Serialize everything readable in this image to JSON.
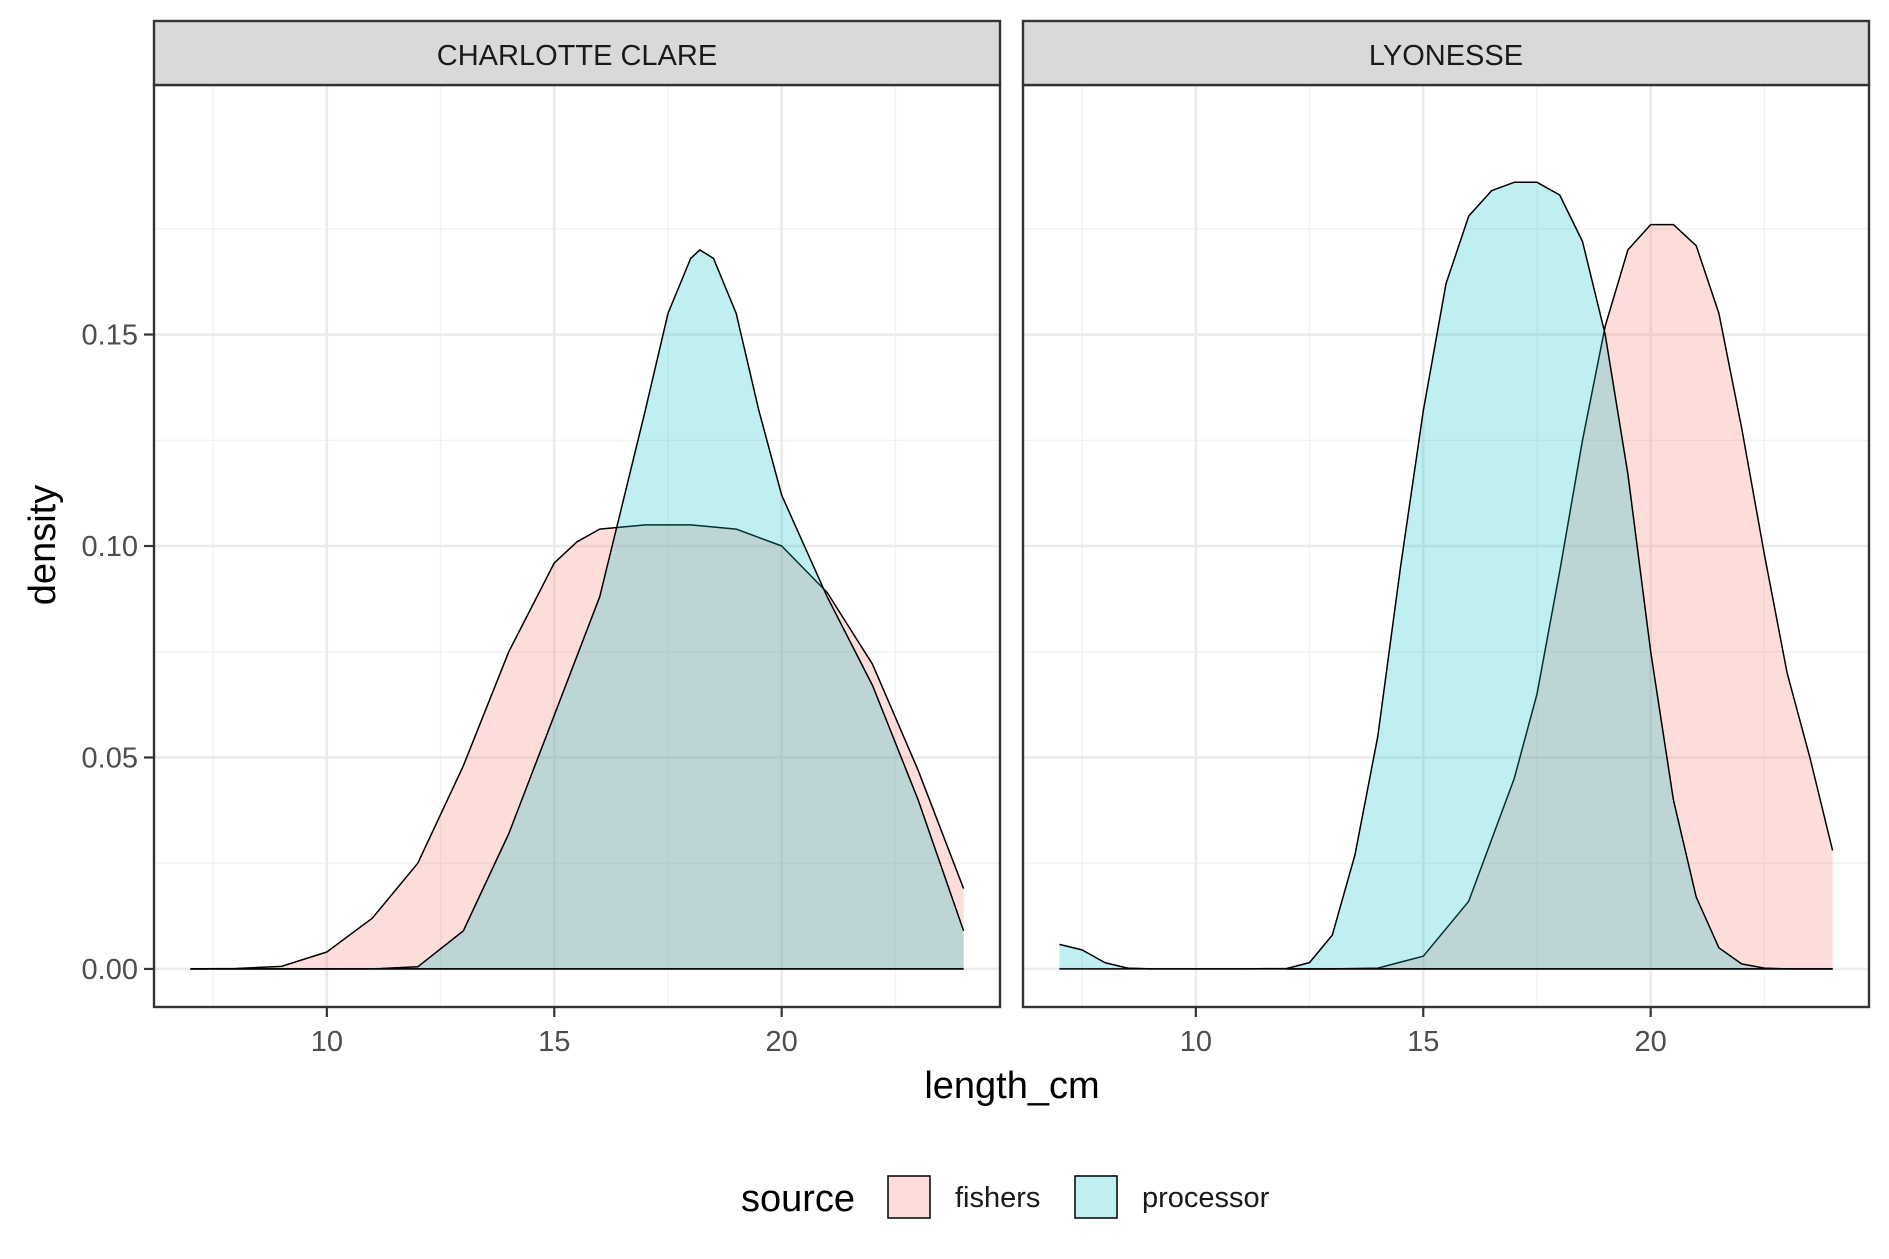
{
  "chart_data": {
    "type": "area",
    "chart_kind": "faceted density plot",
    "xlabel": "length_cm",
    "ylabel": "density",
    "xlim": [
      6.2,
      24.8
    ],
    "ylim": [
      -0.009,
      0.209
    ],
    "x_ticks": [
      10,
      15,
      20
    ],
    "x_tick_labels": [
      "10",
      "15",
      "20"
    ],
    "y_ticks": [
      0.0,
      0.05,
      0.1,
      0.15
    ],
    "y_tick_labels": [
      "0.00",
      "0.05",
      "0.10",
      "0.15"
    ],
    "grid": true,
    "legend": {
      "title": "source",
      "position": "bottom",
      "entries": [
        {
          "name": "fishers",
          "color": "#F8766D"
        },
        {
          "name": "processor",
          "color": "#00BFC4"
        }
      ]
    },
    "fill_alpha": 0.25,
    "panels": [
      {
        "title": "CHARLOTTE CLARE",
        "series": [
          {
            "name": "fishers",
            "x": [
              7.0,
              8.0,
              9.0,
              10.0,
              11.0,
              12.0,
              13.0,
              14.0,
              15.0,
              15.5,
              16.0,
              17.0,
              18.0,
              19.0,
              20.0,
              21.0,
              22.0,
              23.0,
              24.0
            ],
            "y": [
              0.0,
              0.0001,
              0.0006,
              0.004,
              0.012,
              0.025,
              0.048,
              0.075,
              0.096,
              0.101,
              0.104,
              0.105,
              0.105,
              0.104,
              0.1,
              0.089,
              0.072,
              0.047,
              0.019
            ]
          },
          {
            "name": "processor",
            "x": [
              7.0,
              9.0,
              11.0,
              12.0,
              13.0,
              14.0,
              15.0,
              16.0,
              16.5,
              17.0,
              17.5,
              18.0,
              18.2,
              18.5,
              19.0,
              19.5,
              20.0,
              20.5,
              21.0,
              22.0,
              23.0,
              24.0
            ],
            "y": [
              0.0,
              0.0,
              0.0,
              0.0005,
              0.009,
              0.032,
              0.06,
              0.088,
              0.11,
              0.132,
              0.155,
              0.168,
              0.17,
              0.168,
              0.155,
              0.132,
              0.112,
              0.1,
              0.088,
              0.067,
              0.04,
              0.009
            ]
          }
        ]
      },
      {
        "title": "LYONESSE",
        "series": [
          {
            "name": "fishers",
            "x": [
              12.0,
              13.0,
              14.0,
              15.0,
              16.0,
              17.0,
              17.5,
              18.0,
              18.5,
              19.0,
              19.5,
              20.0,
              20.5,
              21.0,
              21.5,
              22.0,
              22.5,
              23.0,
              23.5,
              24.0
            ],
            "y": [
              0.0,
              0.0,
              0.0002,
              0.003,
              0.016,
              0.045,
              0.065,
              0.094,
              0.125,
              0.152,
              0.17,
              0.176,
              0.176,
              0.171,
              0.155,
              0.128,
              0.098,
              0.07,
              0.05,
              0.028
            ]
          },
          {
            "name": "processor",
            "x": [
              7.0,
              7.5,
              8.0,
              8.5,
              9.0,
              10.0,
              11.0,
              12.0,
              12.5,
              13.0,
              13.5,
              14.0,
              14.5,
              15.0,
              15.5,
              16.0,
              16.5,
              17.0,
              17.5,
              18.0,
              18.5,
              19.0,
              19.5,
              20.0,
              20.5,
              21.0,
              21.5,
              22.0,
              22.5,
              23.0,
              24.0
            ],
            "y": [
              0.0058,
              0.0045,
              0.0015,
              0.0002,
              0.0,
              0.0,
              0.0,
              0.0001,
              0.0015,
              0.008,
              0.027,
              0.055,
              0.095,
              0.132,
              0.162,
              0.178,
              0.184,
              0.186,
              0.186,
              0.183,
              0.172,
              0.15,
              0.117,
              0.075,
              0.04,
              0.017,
              0.005,
              0.0012,
              0.0002,
              0.0,
              0.0
            ]
          }
        ]
      }
    ]
  }
}
